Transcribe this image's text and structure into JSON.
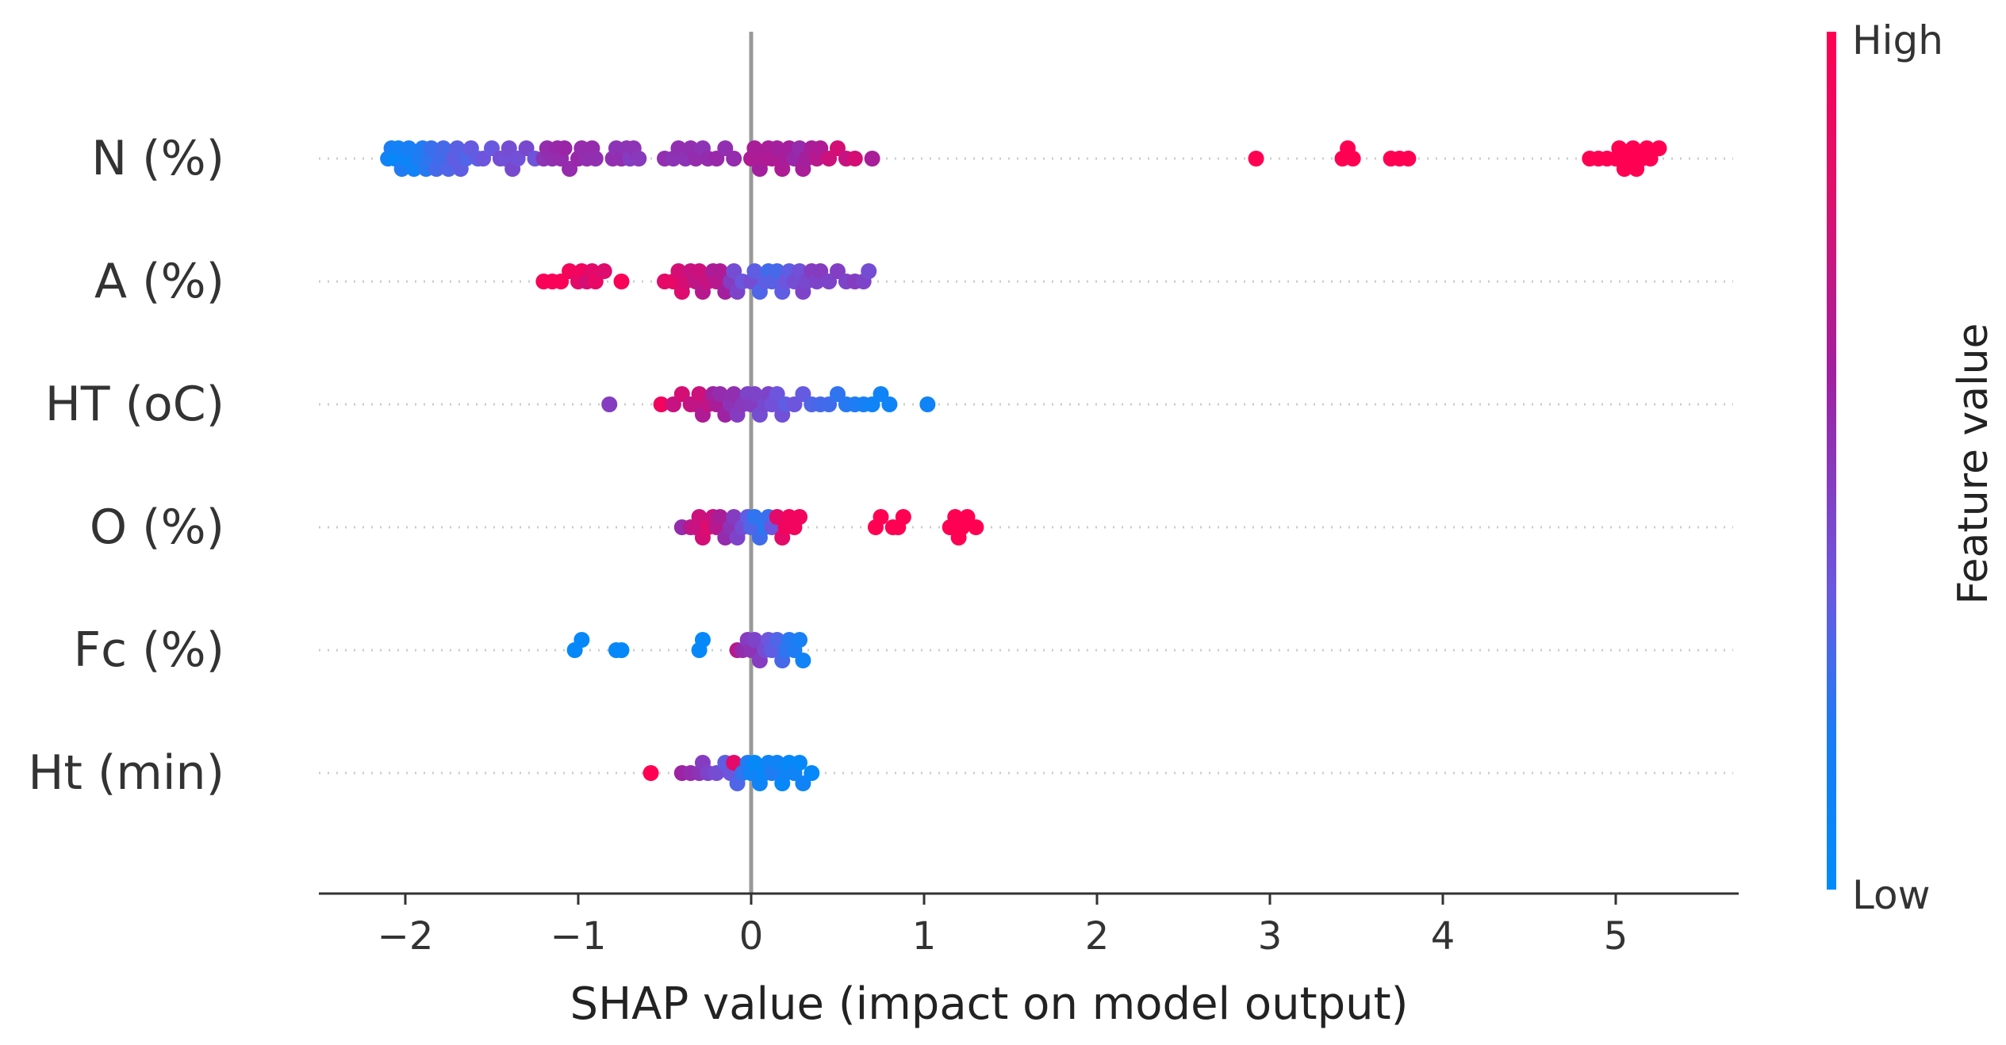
{
  "chart_data": {
    "type": "scatter",
    "subtype": "shap-beeswarm",
    "xlabel": "SHAP value (impact on model output)",
    "xlim": [
      -2.5,
      5.65
    ],
    "xticks": [
      -2,
      -1,
      0,
      1,
      2,
      3,
      4,
      5
    ],
    "xtick_labels": [
      "−2",
      "−1",
      "0",
      "1",
      "2",
      "3",
      "4",
      "5"
    ],
    "colorbar": {
      "title": "Feature value",
      "high_label": "High",
      "low_label": "Low",
      "colors": [
        "#008bfb",
        "#6a58e0",
        "#a020a0",
        "#ff0052"
      ]
    },
    "features": [
      {
        "name": "N (%)",
        "points": [
          [
            -2.1,
            0.05
          ],
          [
            -2.08,
            0.08
          ],
          [
            -2.06,
            0.02
          ],
          [
            -2.04,
            0.06
          ],
          [
            -2.02,
            0.1
          ],
          [
            -2.0,
            0.04
          ],
          [
            -1.98,
            0.08
          ],
          [
            -1.95,
            0.05
          ],
          [
            -1.92,
            0.1
          ],
          [
            -1.9,
            0.1
          ],
          [
            -1.88,
            0.12
          ],
          [
            -1.86,
            0.15
          ],
          [
            -1.85,
            0.18
          ],
          [
            -1.82,
            0.22
          ],
          [
            -1.8,
            0.2
          ],
          [
            -1.78,
            0.22
          ],
          [
            -1.75,
            0.25
          ],
          [
            -1.72,
            0.3
          ],
          [
            -1.7,
            0.28
          ],
          [
            -1.68,
            0.3
          ],
          [
            -1.65,
            0.25
          ],
          [
            -1.62,
            0.32
          ],
          [
            -1.58,
            0.3
          ],
          [
            -1.55,
            0.35
          ],
          [
            -1.5,
            0.33
          ],
          [
            -1.45,
            0.4
          ],
          [
            -1.42,
            0.38
          ],
          [
            -1.4,
            0.4
          ],
          [
            -1.38,
            0.42
          ],
          [
            -1.35,
            0.38
          ],
          [
            -1.3,
            0.42
          ],
          [
            -1.25,
            0.36
          ],
          [
            -1.2,
            0.55
          ],
          [
            -1.18,
            0.6
          ],
          [
            -1.15,
            0.58
          ],
          [
            -1.12,
            0.62
          ],
          [
            -1.1,
            0.6
          ],
          [
            -1.08,
            0.63
          ],
          [
            -1.05,
            0.6
          ],
          [
            -1.0,
            0.62
          ],
          [
            -0.98,
            0.6
          ],
          [
            -0.95,
            0.58
          ],
          [
            -0.92,
            0.6
          ],
          [
            -0.9,
            0.58
          ],
          [
            -0.8,
            0.58
          ],
          [
            -0.78,
            0.55
          ],
          [
            -0.75,
            0.58
          ],
          [
            -0.72,
            0.55
          ],
          [
            -0.7,
            0.5
          ],
          [
            -0.68,
            0.55
          ],
          [
            -0.65,
            0.52
          ],
          [
            -0.5,
            0.58
          ],
          [
            -0.45,
            0.55
          ],
          [
            -0.42,
            0.58
          ],
          [
            -0.38,
            0.55
          ],
          [
            -0.35,
            0.58
          ],
          [
            -0.32,
            0.6
          ],
          [
            -0.28,
            0.55
          ],
          [
            -0.25,
            0.6
          ],
          [
            -0.2,
            0.62
          ],
          [
            -0.15,
            0.58
          ],
          [
            -0.1,
            0.6
          ],
          [
            0.0,
            0.72
          ],
          [
            0.02,
            0.7
          ],
          [
            0.05,
            0.68
          ],
          [
            0.08,
            0.72
          ],
          [
            0.1,
            0.7
          ],
          [
            0.12,
            0.72
          ],
          [
            0.15,
            0.68
          ],
          [
            0.18,
            0.72
          ],
          [
            0.2,
            0.7
          ],
          [
            0.22,
            0.68
          ],
          [
            0.25,
            0.62
          ],
          [
            0.28,
            0.6
          ],
          [
            0.3,
            0.7
          ],
          [
            0.32,
            0.68
          ],
          [
            0.35,
            0.7
          ],
          [
            0.38,
            0.75
          ],
          [
            0.4,
            0.72
          ],
          [
            0.45,
            0.82
          ],
          [
            0.5,
            0.85
          ],
          [
            0.55,
            0.8
          ],
          [
            0.6,
            0.85
          ],
          [
            0.7,
            0.7
          ],
          [
            2.92,
            1
          ],
          [
            3.42,
            1
          ],
          [
            3.45,
            1
          ],
          [
            3.48,
            1
          ],
          [
            3.7,
            1
          ],
          [
            3.75,
            1
          ],
          [
            3.8,
            1
          ],
          [
            4.85,
            1
          ],
          [
            4.9,
            1
          ],
          [
            4.95,
            1
          ],
          [
            5.0,
            1
          ],
          [
            5.02,
            1
          ],
          [
            5.05,
            1
          ],
          [
            5.08,
            1
          ],
          [
            5.1,
            1
          ],
          [
            5.12,
            1
          ],
          [
            5.15,
            1
          ],
          [
            5.18,
            1
          ],
          [
            5.2,
            1
          ],
          [
            5.25,
            1
          ]
        ]
      },
      {
        "name": "A (%)",
        "points": [
          [
            -1.2,
            0.98
          ],
          [
            -1.15,
            0.98
          ],
          [
            -1.1,
            0.98
          ],
          [
            -1.05,
            0.96
          ],
          [
            -1.0,
            0.9
          ],
          [
            -0.98,
            0.95
          ],
          [
            -0.95,
            0.85
          ],
          [
            -0.92,
            0.9
          ],
          [
            -0.9,
            0.92
          ],
          [
            -0.85,
            0.88
          ],
          [
            -0.75,
            0.98
          ],
          [
            -0.5,
            0.9
          ],
          [
            -0.45,
            0.92
          ],
          [
            -0.42,
            0.85
          ],
          [
            -0.4,
            0.88
          ],
          [
            -0.38,
            0.85
          ],
          [
            -0.35,
            0.8
          ],
          [
            -0.32,
            0.78
          ],
          [
            -0.3,
            0.82
          ],
          [
            -0.28,
            0.75
          ],
          [
            -0.25,
            0.8
          ],
          [
            -0.22,
            0.7
          ],
          [
            -0.2,
            0.75
          ],
          [
            -0.18,
            0.72
          ],
          [
            -0.15,
            0.68
          ],
          [
            -0.12,
            0.5
          ],
          [
            -0.1,
            0.4
          ],
          [
            -0.08,
            0.45
          ],
          [
            -0.05,
            0.35
          ],
          [
            0.0,
            0.4
          ],
          [
            0.02,
            0.3
          ],
          [
            0.05,
            0.25
          ],
          [
            0.08,
            0.3
          ],
          [
            0.1,
            0.2
          ],
          [
            0.12,
            0.28
          ],
          [
            0.15,
            0.22
          ],
          [
            0.18,
            0.3
          ],
          [
            0.2,
            0.35
          ],
          [
            0.22,
            0.3
          ],
          [
            0.25,
            0.4
          ],
          [
            0.28,
            0.38
          ],
          [
            0.3,
            0.45
          ],
          [
            0.32,
            0.42
          ],
          [
            0.35,
            0.5
          ],
          [
            0.38,
            0.45
          ],
          [
            0.4,
            0.5
          ],
          [
            0.45,
            0.45
          ],
          [
            0.5,
            0.48
          ],
          [
            0.55,
            0.45
          ],
          [
            0.6,
            0.5
          ],
          [
            0.65,
            0.45
          ],
          [
            0.68,
            0.4
          ]
        ]
      },
      {
        "name": "HT (oC)",
        "points": [
          [
            -0.82,
            0.5
          ],
          [
            -0.52,
            0.95
          ],
          [
            -0.45,
            0.8
          ],
          [
            -0.4,
            0.85
          ],
          [
            -0.35,
            0.8
          ],
          [
            -0.32,
            0.78
          ],
          [
            -0.3,
            0.82
          ],
          [
            -0.28,
            0.72
          ],
          [
            -0.25,
            0.78
          ],
          [
            -0.22,
            0.65
          ],
          [
            -0.2,
            0.7
          ],
          [
            -0.18,
            0.6
          ],
          [
            -0.15,
            0.65
          ],
          [
            -0.12,
            0.55
          ],
          [
            -0.1,
            0.58
          ],
          [
            -0.08,
            0.5
          ],
          [
            -0.05,
            0.52
          ],
          [
            -0.02,
            0.45
          ],
          [
            0.0,
            0.5
          ],
          [
            0.02,
            0.45
          ],
          [
            0.05,
            0.4
          ],
          [
            0.08,
            0.42
          ],
          [
            0.1,
            0.45
          ],
          [
            0.12,
            0.38
          ],
          [
            0.15,
            0.35
          ],
          [
            0.18,
            0.38
          ],
          [
            0.2,
            0.3
          ],
          [
            0.25,
            0.35
          ],
          [
            0.3,
            0.32
          ],
          [
            0.35,
            0.25
          ],
          [
            0.4,
            0.22
          ],
          [
            0.45,
            0.2
          ],
          [
            0.5,
            0.15
          ],
          [
            0.55,
            0.12
          ],
          [
            0.6,
            0.1
          ],
          [
            0.65,
            0.08
          ],
          [
            0.7,
            0.05
          ],
          [
            0.75,
            0.05
          ],
          [
            0.8,
            0.05
          ],
          [
            1.02,
            0.05
          ]
        ]
      },
      {
        "name": "O (%)",
        "points": [
          [
            -0.4,
            0.6
          ],
          [
            -0.35,
            0.75
          ],
          [
            -0.32,
            0.8
          ],
          [
            -0.3,
            0.82
          ],
          [
            -0.28,
            0.85
          ],
          [
            -0.25,
            0.88
          ],
          [
            -0.22,
            0.8
          ],
          [
            -0.2,
            0.75
          ],
          [
            -0.18,
            0.7
          ],
          [
            -0.15,
            0.6
          ],
          [
            -0.12,
            0.55
          ],
          [
            -0.1,
            0.5
          ],
          [
            -0.08,
            0.45
          ],
          [
            -0.05,
            0.4
          ],
          [
            -0.02,
            0.3
          ],
          [
            0.0,
            0.25
          ],
          [
            0.02,
            0.15
          ],
          [
            0.05,
            0.2
          ],
          [
            0.08,
            0.12
          ],
          [
            0.1,
            0.18
          ],
          [
            0.12,
            0.35
          ],
          [
            0.15,
            0.9
          ],
          [
            0.18,
            0.9
          ],
          [
            0.2,
            0.95
          ],
          [
            0.22,
            0.95
          ],
          [
            0.25,
            0.95
          ],
          [
            0.28,
            0.95
          ],
          [
            0.72,
            1
          ],
          [
            0.75,
            1
          ],
          [
            0.82,
            1
          ],
          [
            0.85,
            1
          ],
          [
            0.88,
            1
          ],
          [
            1.15,
            1
          ],
          [
            1.18,
            1
          ],
          [
            1.2,
            1
          ],
          [
            1.22,
            1
          ],
          [
            1.25,
            1
          ],
          [
            1.3,
            1
          ]
        ]
      },
      {
        "name": "Fc (%)",
        "points": [
          [
            -1.02,
            0.02
          ],
          [
            -0.98,
            0.02
          ],
          [
            -0.78,
            0.02
          ],
          [
            -0.75,
            0.02
          ],
          [
            -0.3,
            0.02
          ],
          [
            -0.28,
            0.02
          ],
          [
            -0.08,
            0.75
          ],
          [
            -0.05,
            0.6
          ],
          [
            -0.02,
            0.5
          ],
          [
            0.0,
            0.55
          ],
          [
            0.02,
            0.45
          ],
          [
            0.05,
            0.5
          ],
          [
            0.08,
            0.4
          ],
          [
            0.1,
            0.35
          ],
          [
            0.12,
            0.3
          ],
          [
            0.15,
            0.25
          ],
          [
            0.18,
            0.22
          ],
          [
            0.2,
            0.15
          ],
          [
            0.22,
            0.12
          ],
          [
            0.25,
            0.1
          ],
          [
            0.28,
            0.08
          ],
          [
            0.3,
            0.05
          ]
        ]
      },
      {
        "name": "Ht (min)",
        "points": [
          [
            -0.58,
            1
          ],
          [
            -0.4,
            0.65
          ],
          [
            -0.35,
            0.6
          ],
          [
            -0.3,
            0.55
          ],
          [
            -0.28,
            0.5
          ],
          [
            -0.25,
            0.45
          ],
          [
            -0.2,
            0.4
          ],
          [
            -0.15,
            0.3
          ],
          [
            -0.12,
            0.35
          ],
          [
            -0.1,
            0.9
          ],
          [
            -0.08,
            0.25
          ],
          [
            -0.05,
            0.15
          ],
          [
            -0.02,
            0.1
          ],
          [
            0.0,
            0.05
          ],
          [
            0.02,
            0.02
          ],
          [
            0.05,
            0.05
          ],
          [
            0.08,
            0.02
          ],
          [
            0.1,
            0.05
          ],
          [
            0.12,
            0.1
          ],
          [
            0.15,
            0.05
          ],
          [
            0.18,
            0.02
          ],
          [
            0.2,
            0.05
          ],
          [
            0.22,
            0.02
          ],
          [
            0.25,
            0.05
          ],
          [
            0.28,
            0.02
          ],
          [
            0.3,
            0.05
          ],
          [
            0.35,
            0.02
          ]
        ]
      }
    ]
  }
}
